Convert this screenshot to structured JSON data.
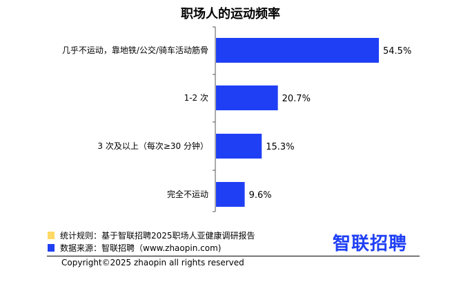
{
  "chart_data": {
    "type": "bar",
    "orientation": "horizontal",
    "title": "职场人的运动频率",
    "categories": [
      "几乎不运动，靠地铁/公交/骑车活动筋骨",
      "1-2 次",
      "3 次及以上（每次≥30 分钟）",
      "完全不运动"
    ],
    "values": [
      54.5,
      20.7,
      15.3,
      9.6
    ],
    "value_labels": [
      "54.5%",
      "20.7%",
      "15.3%",
      "9.6%"
    ],
    "unit": "%",
    "bar_color": "#1f3ff5",
    "xlim": [
      0,
      54.5
    ]
  },
  "legend": [
    {
      "color": "#ffd966",
      "text": "统计规则：基于智联招聘2025职场人亚健康调研报告"
    },
    {
      "color": "#1f3ff5",
      "text": "数据来源：智联招聘（www.zhaopin.com)"
    }
  ],
  "logo": "智联招聘",
  "copyright": "Copyright©2025 zhaopin all rights reserved"
}
